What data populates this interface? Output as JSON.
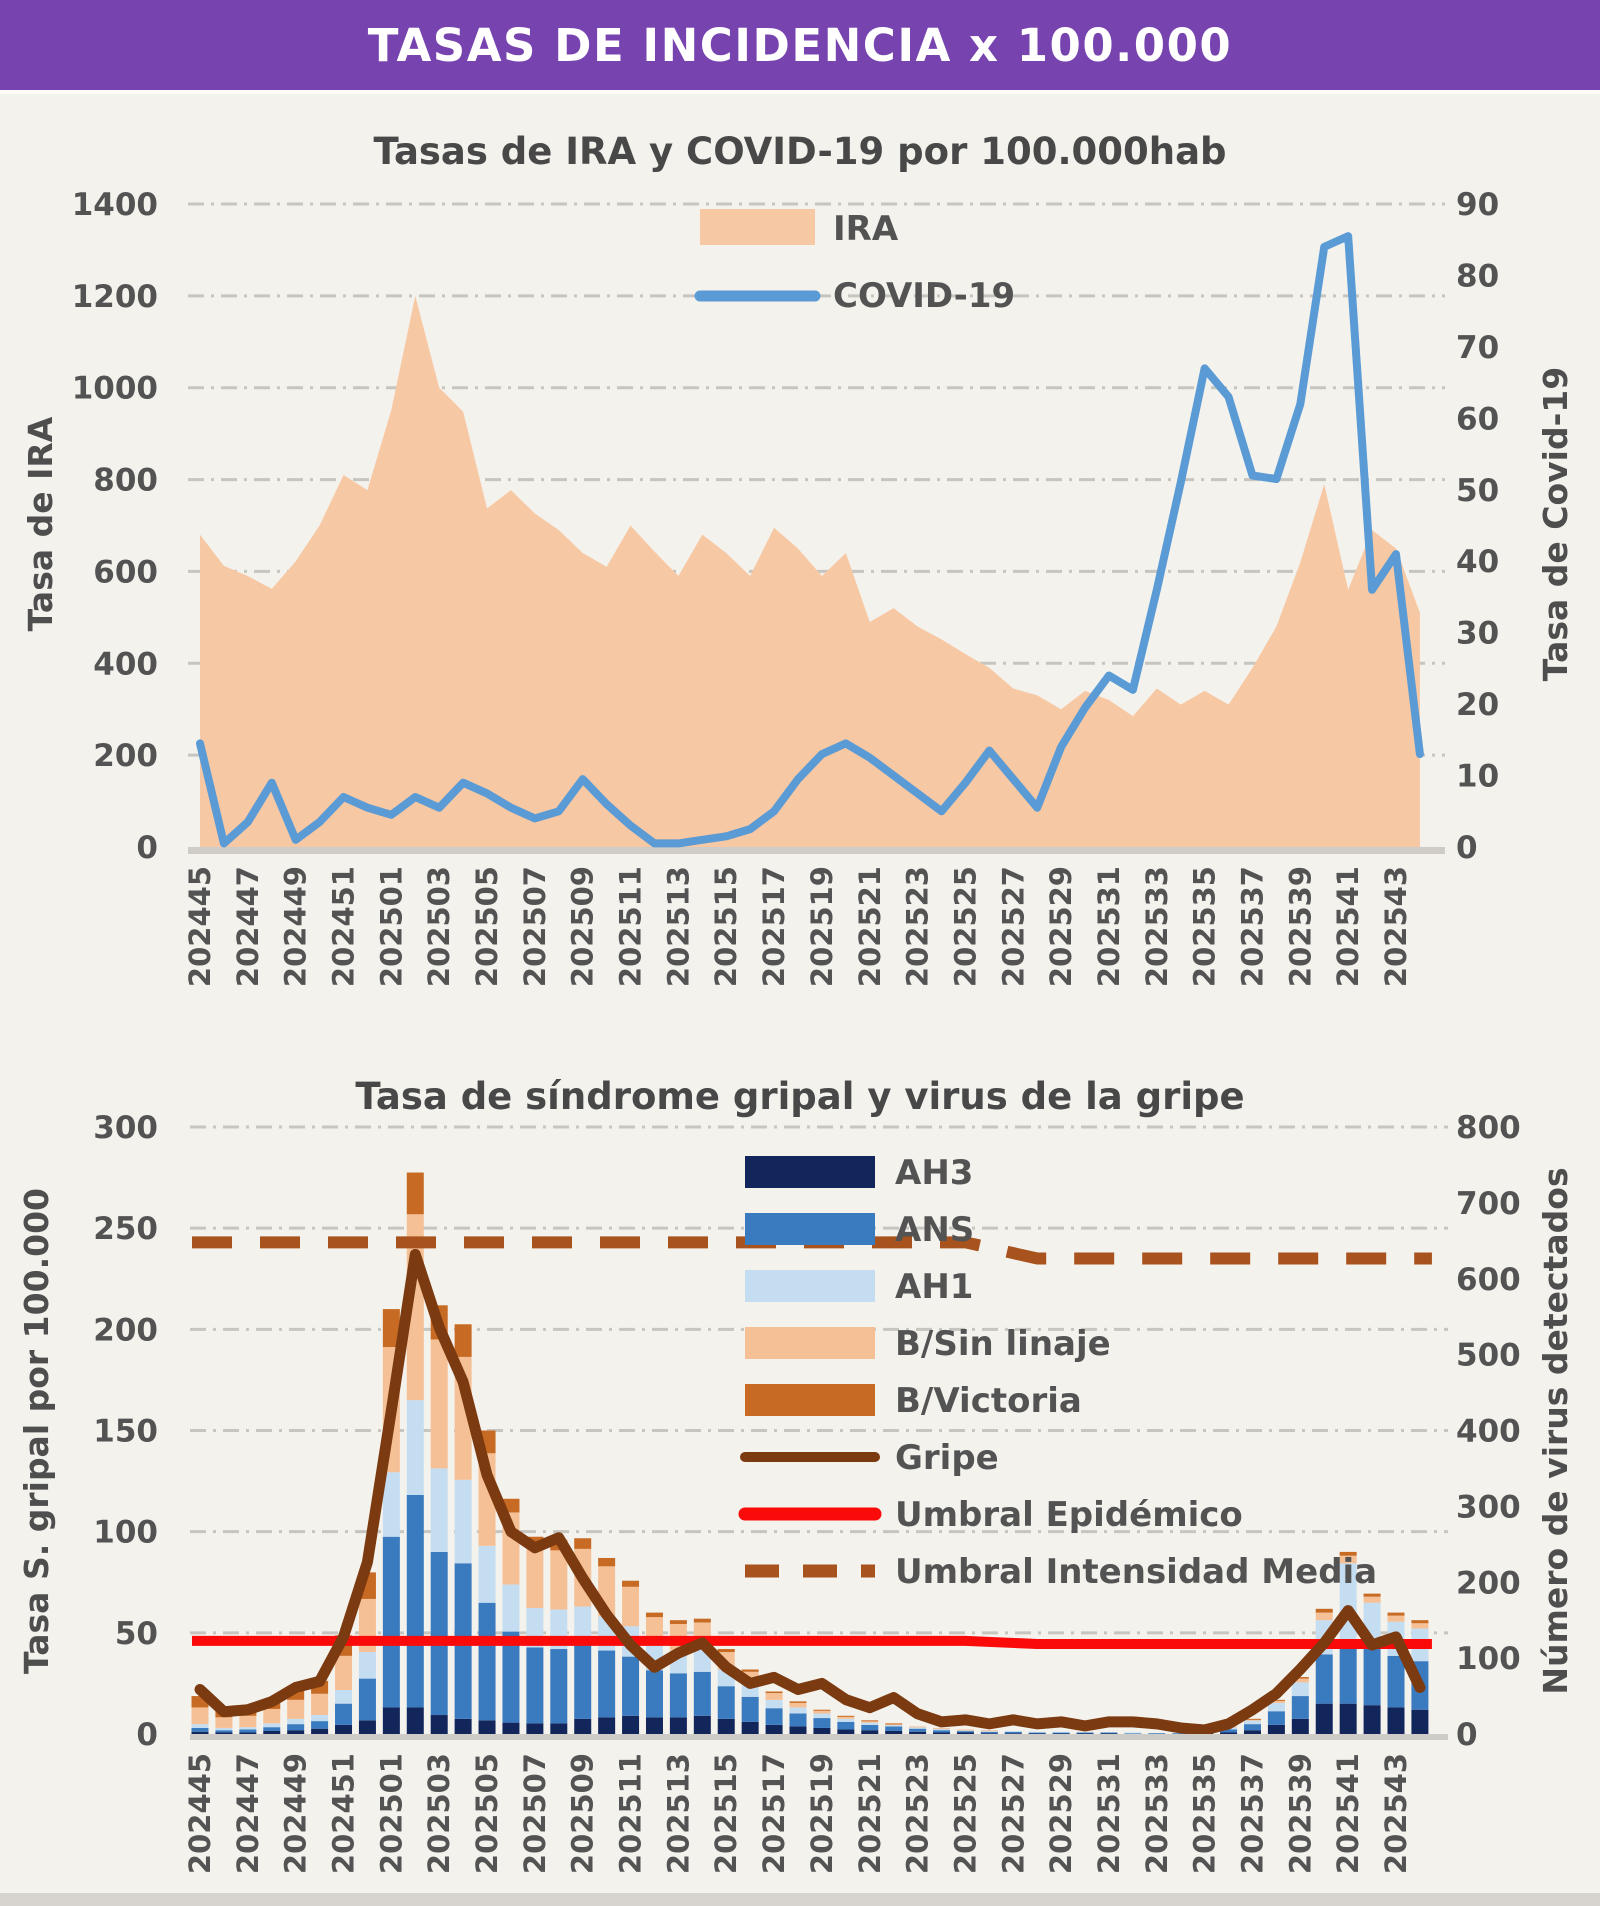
{
  "header": {
    "title": "TASAS DE INCIDENCIA x 100.000"
  },
  "colors": {
    "page_bg": "#f4f2ed",
    "header_bg": "#7743af",
    "header_text": "#ffffff",
    "title_text": "#484848",
    "tick_text": "#535353",
    "grid_line": "#c7c5c0",
    "axis_bar": "#cfccc7",
    "footer_strip": "#d7d4cf"
  },
  "chart_data": [
    {
      "type": "area",
      "title": "Tasas de IRA y COVID-19 por 100.000hab",
      "ylabel_left": "Tasa de IRA",
      "ylabel_right": "Tasa de Covid-19",
      "ylim_left": [
        0,
        1400
      ],
      "yticks_left": [
        0,
        200,
        400,
        600,
        800,
        1000,
        1200,
        1400
      ],
      "ylim_right": [
        0,
        90
      ],
      "yticks_right": [
        0,
        10,
        20,
        30,
        40,
        50,
        60,
        70,
        80,
        90
      ],
      "grid": true,
      "legend_position": "upper-center",
      "x": [
        "202445",
        "202446",
        "202447",
        "202448",
        "202449",
        "202450",
        "202451",
        "202452",
        "202501",
        "202502",
        "202503",
        "202504",
        "202505",
        "202506",
        "202507",
        "202508",
        "202509",
        "202510",
        "202511",
        "202512",
        "202513",
        "202514",
        "202515",
        "202516",
        "202517",
        "202518",
        "202519",
        "202520",
        "202521",
        "202522",
        "202523",
        "202524",
        "202525",
        "202526",
        "202527",
        "202528",
        "202529",
        "202530",
        "202531",
        "202532",
        "202533",
        "202534",
        "202535",
        "202536",
        "202537",
        "202538",
        "202539",
        "202540",
        "202541",
        "202542",
        "202543",
        "202544"
      ],
      "x_tick_step": 2,
      "series": [
        {
          "name": "IRA",
          "type": "area",
          "axis": "left",
          "color": "#f7c8a4",
          "values": [
            680,
            612,
            590,
            562,
            622,
            700,
            810,
            777,
            952,
            1200,
            1000,
            948,
            737,
            777,
            726,
            690,
            640,
            610,
            700,
            643,
            590,
            680,
            640,
            590,
            695,
            650,
            590,
            640,
            490,
            520,
            480,
            452,
            420,
            390,
            345,
            330,
            300,
            340,
            320,
            285,
            345,
            310,
            340,
            310,
            390,
            480,
            620,
            790,
            560,
            690,
            650,
            510
          ]
        },
        {
          "name": "COVID-19",
          "type": "line",
          "axis": "right",
          "color": "#5b9bd5",
          "values": [
            14.5,
            0.5,
            3.5,
            9,
            1,
            3.5,
            7,
            5.5,
            4.5,
            7,
            5.5,
            9,
            7.5,
            5.5,
            4,
            5,
            9.5,
            6,
            3,
            0.5,
            0.5,
            1,
            1.5,
            2.5,
            5,
            9.5,
            13,
            14.5,
            12.5,
            10,
            7.5,
            5,
            9,
            13.5,
            9.5,
            5.5,
            14,
            19.5,
            24,
            22,
            36,
            51,
            67,
            63,
            52,
            51.5,
            62,
            84,
            85.5,
            36,
            41,
            13
          ]
        }
      ],
      "legend": [
        {
          "label": "IRA",
          "swatch": "area",
          "color": "#f7c8a4"
        },
        {
          "label": "COVID-19",
          "swatch": "line",
          "color": "#5b9bd5"
        }
      ]
    },
    {
      "type": "stacked-bar",
      "title": "Tasa de síndrome gripal y virus de la gripe",
      "ylabel_left": "Tasa S. gripal por 100.000",
      "ylabel_right": "Número de virus detectados",
      "ylim_left": [
        0,
        300
      ],
      "yticks_left": [
        0,
        50,
        100,
        150,
        200,
        250,
        300
      ],
      "ylim_right": [
        0,
        800
      ],
      "yticks_right": [
        0,
        100,
        200,
        300,
        400,
        500,
        600,
        700,
        800
      ],
      "grid": true,
      "legend_position": "upper-center",
      "x": [
        "202445",
        "202446",
        "202447",
        "202448",
        "202449",
        "202450",
        "202451",
        "202452",
        "202501",
        "202502",
        "202503",
        "202504",
        "202505",
        "202506",
        "202507",
        "202508",
        "202509",
        "202510",
        "202511",
        "202512",
        "202513",
        "202514",
        "202515",
        "202516",
        "202517",
        "202518",
        "202519",
        "202520",
        "202521",
        "202522",
        "202523",
        "202524",
        "202525",
        "202526",
        "202527",
        "202528",
        "202529",
        "202530",
        "202531",
        "202532",
        "202533",
        "202534",
        "202535",
        "202536",
        "202537",
        "202538",
        "202539",
        "202540",
        "202541",
        "202542",
        "202543",
        "202544"
      ],
      "x_tick_step": 2,
      "bar_axis": "right",
      "bar_series": [
        {
          "name": "AH3",
          "color": "#13265c",
          "values": [
            3,
            2,
            2,
            4,
            5,
            7,
            12,
            18,
            35,
            35,
            25,
            20,
            18,
            15,
            14,
            14,
            20,
            22,
            24,
            22,
            22,
            24,
            20,
            16,
            12,
            10,
            8,
            6,
            5,
            4,
            3,
            2,
            2,
            1,
            1,
            1,
            1,
            1,
            1,
            0,
            0,
            0,
            1,
            2,
            5,
            12,
            20,
            40,
            40,
            38,
            35,
            32
          ]
        },
        {
          "name": "ANS",
          "color": "#3a7abf",
          "values": [
            5,
            3,
            4,
            5,
            8,
            10,
            28,
            55,
            225,
            280,
            215,
            205,
            155,
            120,
            100,
            98,
            98,
            88,
            78,
            62,
            58,
            58,
            43,
            33,
            22,
            17,
            13,
            10,
            7,
            6,
            4,
            3,
            2,
            2,
            2,
            1,
            1,
            1,
            1,
            1,
            1,
            1,
            2,
            4,
            8,
            18,
            30,
            65,
            85,
            75,
            68,
            64
          ]
        },
        {
          "name": "AH1",
          "color": "#c5ddf1",
          "values": [
            5,
            3,
            3,
            5,
            7,
            8,
            18,
            35,
            85,
            125,
            110,
            110,
            75,
            62,
            52,
            52,
            50,
            45,
            40,
            32,
            30,
            30,
            22,
            17,
            11,
            8,
            6,
            4,
            3,
            2,
            2,
            2,
            1,
            1,
            1,
            1,
            1,
            0,
            0,
            1,
            0,
            0,
            1,
            3,
            5,
            11,
            18,
            45,
            100,
            60,
            45,
            43
          ]
        },
        {
          "name": "B/Sin linaje",
          "color": "#f6c096",
          "values": [
            22,
            14,
            15,
            19,
            25,
            28,
            45,
            70,
            165,
            245,
            170,
            162,
            122,
            95,
            80,
            78,
            76,
            66,
            52,
            38,
            35,
            35,
            23,
            16,
            9,
            6,
            4,
            3,
            2,
            1,
            1,
            1,
            1,
            1,
            0,
            0,
            0,
            0,
            0,
            0,
            0,
            0,
            0,
            1,
            1,
            3,
            5,
            10,
            10,
            8,
            8,
            7
          ]
        },
        {
          "name": "B/Victoria",
          "color": "#c76a23",
          "values": [
            15,
            8,
            9,
            12,
            15,
            17,
            27,
            35,
            50,
            55,
            45,
            43,
            30,
            18,
            14,
            14,
            14,
            11,
            8,
            6,
            5,
            5,
            4,
            3,
            2,
            2,
            1,
            1,
            1,
            1,
            0,
            0,
            0,
            0,
            0,
            0,
            0,
            0,
            0,
            0,
            0,
            0,
            0,
            0,
            1,
            1,
            2,
            5,
            5,
            4,
            4,
            4
          ]
        }
      ],
      "line_series": [
        {
          "name": "Gripe",
          "axis": "left",
          "color": "#7b3a10",
          "style": "solid",
          "width": 11,
          "values": [
            22,
            11,
            12,
            16,
            23,
            26,
            48,
            85,
            160,
            237,
            201,
            174,
            128,
            100,
            92,
            97,
            77,
            59,
            44,
            33,
            40,
            45,
            33,
            25,
            28,
            22,
            25,
            17,
            13,
            18,
            10,
            6,
            7,
            5,
            7,
            5,
            6,
            4,
            6,
            6,
            5,
            3,
            2,
            5,
            12,
            20,
            32,
            45,
            61,
            44,
            48,
            23
          ]
        }
      ],
      "thresholds": [
        {
          "name": "Umbral Epidémico",
          "axis": "left",
          "color": "#fb0a0a",
          "style": "solid",
          "width": 10,
          "segments": [
            {
              "from": 0,
              "to": 32,
              "value": 46
            },
            {
              "from": 35,
              "to": 51,
              "value": 44.5
            }
          ]
        },
        {
          "name": "Umbral Intensidad Media",
          "axis": "left",
          "color": "#a8531d",
          "style": "dashed",
          "width": 12,
          "segments": [
            {
              "from": 0,
              "to": 32,
              "value": 243
            },
            {
              "from": 35,
              "to": 51,
              "value": 235
            }
          ]
        }
      ],
      "legend": [
        {
          "label": "AH3",
          "swatch": "bar",
          "color": "#13265c"
        },
        {
          "label": "ANS",
          "swatch": "bar",
          "color": "#3a7abf"
        },
        {
          "label": "AH1",
          "swatch": "bar",
          "color": "#c5ddf1"
        },
        {
          "label": "B/Sin linaje",
          "swatch": "bar",
          "color": "#f6c096"
        },
        {
          "label": "B/Victoria",
          "swatch": "bar",
          "color": "#c76a23"
        },
        {
          "label": "Gripe",
          "swatch": "line",
          "color": "#7b3a10"
        },
        {
          "label": "Umbral Epidémico",
          "swatch": "line-thick",
          "color": "#fb0a0a"
        },
        {
          "label": "Umbral Intensidad Media",
          "swatch": "line-dashed",
          "color": "#a8531d"
        }
      ]
    }
  ]
}
